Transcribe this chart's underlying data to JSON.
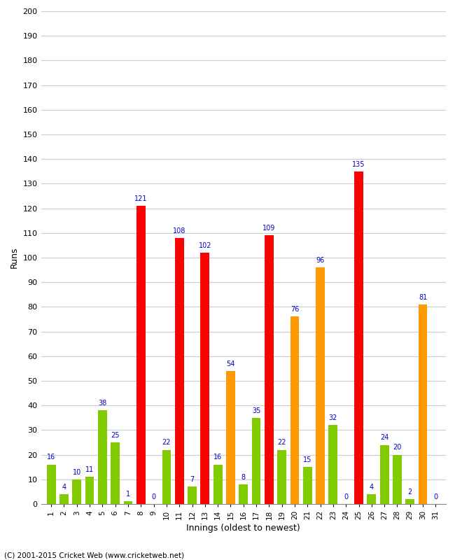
{
  "xlabel": "Innings (oldest to newest)",
  "ylabel": "Runs",
  "copyright": "(C) 2001-2015 Cricket Web (www.cricketweb.net)",
  "ylim": [
    0,
    200
  ],
  "yticks": [
    0,
    10,
    20,
    30,
    40,
    50,
    60,
    70,
    80,
    90,
    100,
    110,
    120,
    130,
    140,
    150,
    160,
    170,
    180,
    190,
    200
  ],
  "innings": [
    1,
    2,
    3,
    4,
    5,
    6,
    7,
    8,
    9,
    10,
    11,
    12,
    13,
    14,
    15,
    16,
    17,
    18,
    19,
    20,
    21,
    22,
    23,
    24,
    25,
    26,
    27,
    28,
    29,
    30,
    31
  ],
  "values": [
    16,
    4,
    10,
    11,
    38,
    25,
    1,
    121,
    0,
    22,
    108,
    7,
    102,
    16,
    54,
    8,
    35,
    109,
    22,
    76,
    15,
    96,
    32,
    0,
    135,
    4,
    24,
    20,
    2,
    81,
    0
  ],
  "colors": [
    "#80cc00",
    "#80cc00",
    "#80cc00",
    "#80cc00",
    "#80cc00",
    "#80cc00",
    "#80cc00",
    "#ff0000",
    "#80cc00",
    "#80cc00",
    "#ff0000",
    "#80cc00",
    "#ff0000",
    "#80cc00",
    "#ff9900",
    "#80cc00",
    "#80cc00",
    "#ff0000",
    "#80cc00",
    "#ff9900",
    "#80cc00",
    "#ff9900",
    "#80cc00",
    "#80cc00",
    "#ff0000",
    "#80cc00",
    "#80cc00",
    "#80cc00",
    "#80cc00",
    "#ff9900",
    "#80cc00"
  ],
  "label_color": "#0000cc",
  "background_color": "#ffffff",
  "grid_color": "#cccccc",
  "bar_width": 0.7
}
